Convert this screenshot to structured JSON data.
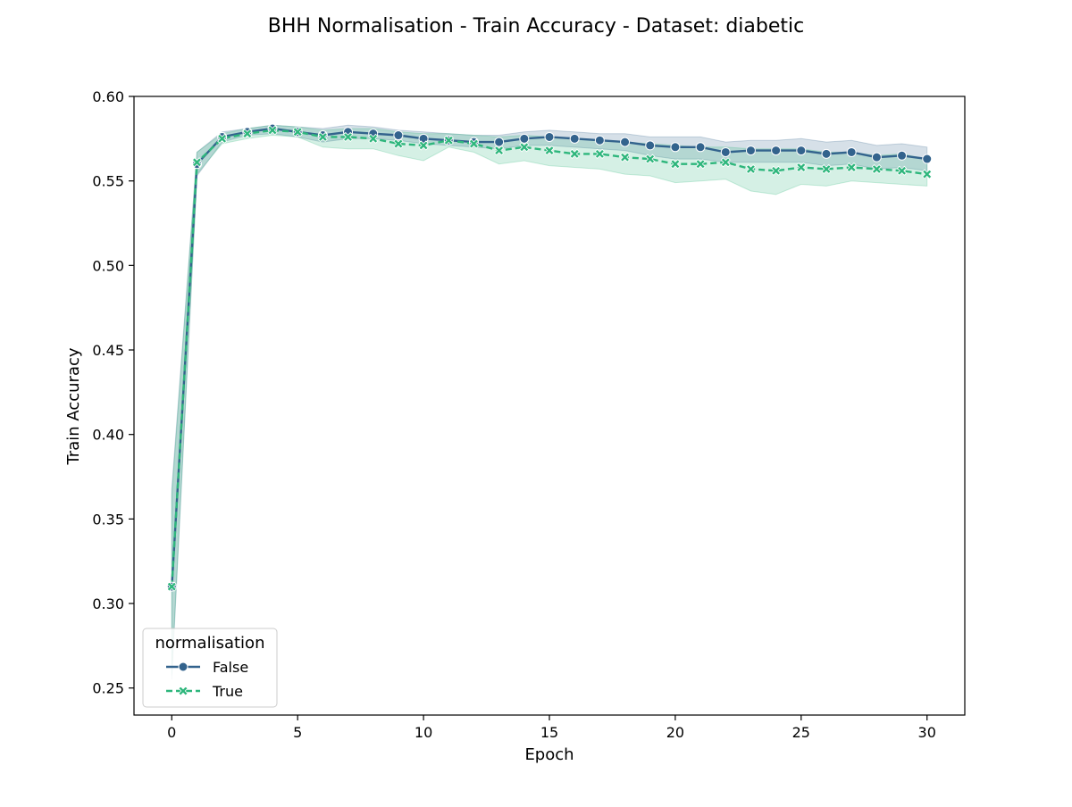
{
  "chart_data": {
    "type": "line",
    "title": "BHH Normalisation - Train Accuracy - Dataset: diabetic",
    "xlabel": "Epoch",
    "ylabel": "Train Accuracy",
    "xlim": [
      -1.5,
      31.5
    ],
    "ylim": [
      0.234,
      0.6
    ],
    "xticks": [
      0,
      5,
      10,
      15,
      20,
      25,
      30
    ],
    "yticks": [
      0.25,
      0.3,
      0.35,
      0.4,
      0.45,
      0.5,
      0.55,
      0.6
    ],
    "grid": false,
    "legend": {
      "title": "normalisation",
      "placement": "lower-left"
    },
    "x": [
      0,
      1,
      2,
      3,
      4,
      5,
      6,
      7,
      8,
      9,
      10,
      11,
      12,
      13,
      14,
      15,
      16,
      17,
      18,
      19,
      20,
      21,
      22,
      23,
      24,
      25,
      26,
      27,
      28,
      29,
      30
    ],
    "series": [
      {
        "name": "False",
        "color": "#33638d",
        "marker": "circle",
        "dash": "solid",
        "values": [
          0.31,
          0.56,
          0.576,
          0.579,
          0.581,
          0.579,
          0.577,
          0.579,
          0.578,
          0.577,
          0.575,
          0.574,
          0.573,
          0.573,
          0.575,
          0.576,
          0.575,
          0.574,
          0.573,
          0.571,
          0.57,
          0.57,
          0.567,
          0.568,
          0.568,
          0.568,
          0.566,
          0.567,
          0.564,
          0.565,
          0.563
        ],
        "lower": [
          0.255,
          0.553,
          0.573,
          0.577,
          0.578,
          0.576,
          0.573,
          0.575,
          0.575,
          0.574,
          0.572,
          0.571,
          0.57,
          0.569,
          0.571,
          0.571,
          0.57,
          0.569,
          0.568,
          0.565,
          0.563,
          0.563,
          0.561,
          0.561,
          0.561,
          0.561,
          0.559,
          0.56,
          0.557,
          0.558,
          0.556
        ],
        "upper": [
          0.368,
          0.567,
          0.579,
          0.581,
          0.583,
          0.582,
          0.581,
          0.583,
          0.582,
          0.58,
          0.579,
          0.578,
          0.577,
          0.577,
          0.579,
          0.58,
          0.579,
          0.578,
          0.578,
          0.576,
          0.576,
          0.576,
          0.573,
          0.574,
          0.574,
          0.575,
          0.573,
          0.574,
          0.571,
          0.572,
          0.57
        ]
      },
      {
        "name": "True",
        "color": "#2eb67c",
        "marker": "x",
        "dash": "dashed",
        "values": [
          0.31,
          0.561,
          0.575,
          0.578,
          0.58,
          0.579,
          0.576,
          0.576,
          0.575,
          0.572,
          0.571,
          0.574,
          0.572,
          0.568,
          0.57,
          0.568,
          0.566,
          0.566,
          0.564,
          0.563,
          0.56,
          0.56,
          0.561,
          0.557,
          0.556,
          0.558,
          0.557,
          0.558,
          0.557,
          0.556,
          0.554
        ],
        "lower": [
          0.258,
          0.554,
          0.572,
          0.575,
          0.577,
          0.576,
          0.57,
          0.569,
          0.569,
          0.565,
          0.562,
          0.57,
          0.567,
          0.56,
          0.562,
          0.559,
          0.558,
          0.557,
          0.554,
          0.553,
          0.549,
          0.55,
          0.551,
          0.544,
          0.542,
          0.548,
          0.547,
          0.55,
          0.549,
          0.548,
          0.547
        ],
        "upper": [
          0.364,
          0.567,
          0.578,
          0.581,
          0.583,
          0.582,
          0.58,
          0.581,
          0.581,
          0.579,
          0.578,
          0.578,
          0.577,
          0.576,
          0.577,
          0.576,
          0.575,
          0.574,
          0.573,
          0.572,
          0.571,
          0.57,
          0.57,
          0.569,
          0.569,
          0.569,
          0.567,
          0.567,
          0.565,
          0.566,
          0.563
        ]
      }
    ]
  }
}
